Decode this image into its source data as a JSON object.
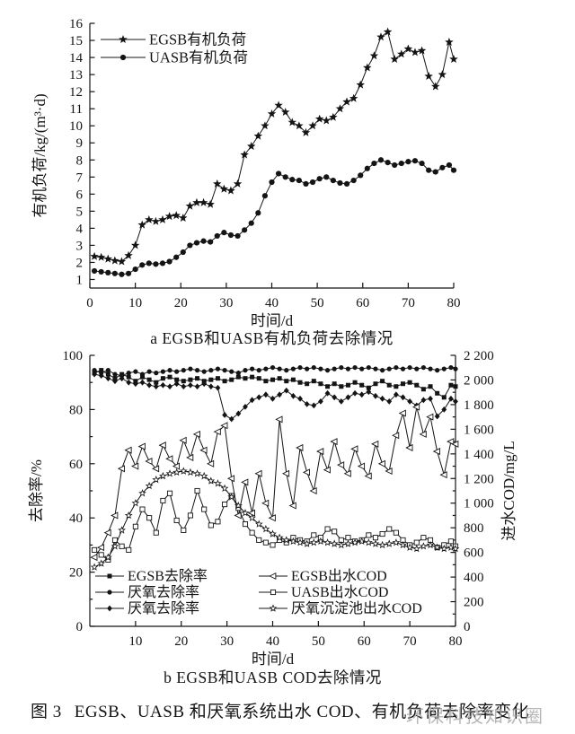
{
  "page": {
    "background": "#ffffff",
    "ink_color": "#141414",
    "watermark_color": "#9e9e9e",
    "figure_label": "图 3",
    "caption": "EGSB、UASB 和厌氧系统出水 COD、有机负荷去除率变化",
    "watermark": "环保科技知识圈"
  },
  "chart_data": [
    {
      "id": "a",
      "type": "line",
      "title": "a EGSB和UASB有机负荷去除情况",
      "xlabel": "时间/d",
      "ylabel": "有机负荷/kg/(m³·d)",
      "xlim": [
        0,
        80
      ],
      "ylim": [
        1,
        16
      ],
      "x_ticks": [
        0,
        10,
        20,
        30,
        40,
        50,
        60,
        70,
        80
      ],
      "y_ticks": [
        1,
        2,
        3,
        4,
        5,
        6,
        7,
        8,
        9,
        10,
        11,
        12,
        13,
        14,
        15,
        16
      ],
      "grid": false,
      "legend_position": "top-left",
      "x": [
        1,
        2.5,
        4,
        5.5,
        7,
        8.5,
        10,
        11.5,
        13,
        14.5,
        16,
        17.5,
        19,
        20.5,
        22,
        23.5,
        25,
        26.5,
        28,
        29.5,
        31,
        32.5,
        34,
        35.5,
        37,
        38.5,
        40,
        41.5,
        43,
        44.5,
        46,
        47.5,
        49,
        50.5,
        52,
        53.5,
        55,
        56.5,
        58,
        59.5,
        61,
        62.5,
        64,
        65.5,
        67,
        68.5,
        70,
        71.5,
        73,
        74.5,
        76,
        77.5,
        79,
        80
      ],
      "series": [
        {
          "key": "egsb-organic-load",
          "name": "EGSB有机负荷",
          "marker": "star",
          "axis": "left",
          "values": [
            2.35,
            2.3,
            2.2,
            2.1,
            2.05,
            2.4,
            3.0,
            4.2,
            4.5,
            4.4,
            4.5,
            4.7,
            4.75,
            4.6,
            5.3,
            5.5,
            5.5,
            5.4,
            6.6,
            6.3,
            6.2,
            6.6,
            8.3,
            8.8,
            9.4,
            10.0,
            10.7,
            11.2,
            10.8,
            10.2,
            10.0,
            9.6,
            10.0,
            10.4,
            10.3,
            10.5,
            11.0,
            11.4,
            11.6,
            12.4,
            13.4,
            14.1,
            15.2,
            15.5,
            13.9,
            14.2,
            14.5,
            14.3,
            14.4,
            12.9,
            12.3,
            13.0,
            14.9,
            13.9
          ]
        },
        {
          "key": "uasb-organic-load",
          "name": "UASB有机负荷",
          "marker": "circle",
          "axis": "left",
          "values": [
            1.5,
            1.45,
            1.4,
            1.35,
            1.3,
            1.35,
            1.6,
            1.85,
            1.95,
            1.9,
            1.95,
            2.05,
            2.3,
            2.6,
            3.0,
            3.15,
            3.25,
            3.2,
            3.55,
            3.75,
            3.6,
            3.55,
            3.9,
            4.3,
            4.9,
            5.9,
            6.7,
            7.2,
            7.0,
            6.85,
            6.8,
            6.6,
            6.7,
            6.9,
            7.0,
            6.8,
            6.65,
            6.6,
            6.8,
            7.1,
            7.5,
            7.8,
            8.0,
            7.85,
            7.7,
            7.8,
            7.9,
            7.95,
            7.8,
            7.4,
            7.3,
            7.55,
            7.7,
            7.4
          ]
        }
      ]
    },
    {
      "id": "b",
      "type": "line",
      "title": "b EGSB和UASB COD去除情况",
      "xlabel": "时间/d",
      "ylabel": "去除率/%",
      "ylabel_right": "进水COD/mg/L",
      "xlim": [
        0,
        80
      ],
      "ylim": [
        0,
        100
      ],
      "ylim_right": [
        0,
        2200
      ],
      "x_ticks": [
        10,
        20,
        30,
        40,
        50,
        60,
        70,
        80
      ],
      "y_ticks": [
        0,
        20,
        40,
        60,
        80,
        100
      ],
      "y_ticks_right": [
        0,
        200,
        400,
        600,
        800,
        1000,
        1200,
        1400,
        1600,
        1800,
        2000,
        2200
      ],
      "y_ticks_right_labels": [
        "0",
        "200",
        "400",
        "600",
        "800",
        "1 000",
        "1 200",
        "1 400",
        "1 600",
        "1 800",
        "2 000",
        "2 200"
      ],
      "grid": false,
      "legend_position": "bottom-inside",
      "x": [
        1,
        2.5,
        4,
        5.5,
        7,
        8.5,
        10,
        11.5,
        13,
        14.5,
        16,
        17.5,
        19,
        20.5,
        22,
        23.5,
        25,
        26.5,
        28,
        29.5,
        31,
        32.5,
        34,
        35.5,
        37,
        38.5,
        40,
        41.5,
        43,
        44.5,
        46,
        47.5,
        49,
        50.5,
        52,
        53.5,
        55,
        56.5,
        58,
        59.5,
        61,
        62.5,
        64,
        65.5,
        67,
        68.5,
        70,
        71.5,
        73,
        74.5,
        76,
        77.5,
        79,
        80
      ],
      "series": [
        {
          "key": "egsb-removal-rate",
          "name": "EGSB去除率",
          "marker": "square",
          "axis": "left",
          "values": [
            93.5,
            94.5,
            93,
            91.5,
            93,
            92,
            90.5,
            92,
            91,
            90,
            91.5,
            92,
            91,
            90.5,
            91,
            91.5,
            90.5,
            91,
            91.5,
            90.5,
            91,
            92,
            91.5,
            92,
            91.5,
            90.5,
            91,
            91.5,
            90.5,
            91,
            90,
            89.5,
            90.5,
            89.5,
            88.5,
            89.5,
            88.5,
            89,
            90,
            89,
            88,
            89.5,
            90.5,
            89,
            88.5,
            89.5,
            90,
            89,
            87.5,
            88.5,
            86,
            84.5,
            89,
            88.5
          ]
        },
        {
          "key": "anaerobic-removal-rate-1",
          "name": "厌氧去除率",
          "marker": "dot",
          "axis": "left",
          "values": [
            94.5,
            93.5,
            94.5,
            93,
            92.5,
            93.5,
            94,
            93,
            94,
            93.5,
            94,
            94.5,
            94,
            94.5,
            95,
            94.5,
            94,
            94.5,
            95,
            94.5,
            94,
            93.5,
            94.5,
            95,
            94.5,
            95,
            95.5,
            95,
            94.5,
            95,
            95.5,
            95,
            95.5,
            95,
            94.5,
            95,
            95.5,
            95,
            95.5,
            95,
            95.5,
            95,
            94.5,
            95,
            95.5,
            95,
            95.5,
            95,
            95.5,
            95,
            94.5,
            95,
            95.5,
            95
          ]
        },
        {
          "key": "anaerobic-removal-rate-2",
          "name": "厌氧去除率",
          "marker": "diamond",
          "axis": "left",
          "values": [
            93,
            92.5,
            91.5,
            90.5,
            91.5,
            90,
            89.5,
            90,
            89,
            88.5,
            89,
            88.5,
            89.5,
            88.5,
            89,
            88.5,
            89.5,
            88.5,
            88,
            78,
            76.5,
            78.5,
            81,
            83.5,
            84.5,
            85.5,
            84,
            85.5,
            87,
            85,
            84,
            82,
            81.5,
            83,
            86,
            84.5,
            83,
            84.5,
            86,
            85.5,
            86.5,
            85,
            84,
            83,
            85.5,
            84.5,
            83,
            81.5,
            83.5,
            84,
            77.5,
            80,
            84,
            83
          ]
        },
        {
          "key": "egsb-effluent-cod",
          "name": "EGSB出水COD",
          "marker": "triangle-left-open",
          "axis": "right",
          "values": [
            560,
            640,
            760,
            900,
            1280,
            1430,
            1300,
            1460,
            1340,
            1280,
            1470,
            1360,
            1300,
            1510,
            1370,
            1560,
            1430,
            1320,
            1580,
            1630,
            1200,
            900,
            1170,
            920,
            1240,
            1000,
            880,
            1680,
            1240,
            980,
            1450,
            1250,
            1100,
            1420,
            1270,
            1500,
            1310,
            1240,
            1440,
            1300,
            1220,
            1480,
            1320,
            1260,
            1550,
            1730,
            1450,
            1780,
            1560,
            1700,
            1420,
            1230,
            1500,
            1480
          ]
        },
        {
          "key": "uasb-effluent-cod",
          "name": "UASB出水COD",
          "marker": "square-open",
          "axis": "right",
          "values": [
            620,
            580,
            540,
            700,
            650,
            620,
            810,
            950,
            880,
            760,
            1020,
            1080,
            860,
            780,
            900,
            1100,
            950,
            820,
            850,
            990,
            1060,
            960,
            830,
            760,
            700,
            680,
            660,
            700,
            680,
            720,
            700,
            690,
            740,
            720,
            790,
            770,
            700,
            720,
            690,
            700,
            740,
            720,
            750,
            790,
            760,
            700,
            660,
            680,
            720,
            700,
            640,
            660,
            690,
            650
          ]
        },
        {
          "key": "anaerobic-settler-effluent-cod",
          "name": "厌氧沉淀池出水COD",
          "marker": "star-open",
          "axis": "right",
          "values": [
            480,
            510,
            560,
            650,
            780,
            900,
            1000,
            1080,
            1140,
            1190,
            1220,
            1240,
            1250,
            1260,
            1250,
            1240,
            1220,
            1180,
            1160,
            1120,
            1050,
            980,
            920,
            880,
            830,
            790,
            750,
            720,
            700,
            690,
            680,
            670,
            680,
            690,
            680,
            670,
            660,
            670,
            680,
            690,
            680,
            670,
            660,
            670,
            680,
            660,
            640,
            630,
            650,
            660,
            640,
            630,
            640,
            630
          ]
        }
      ]
    }
  ]
}
